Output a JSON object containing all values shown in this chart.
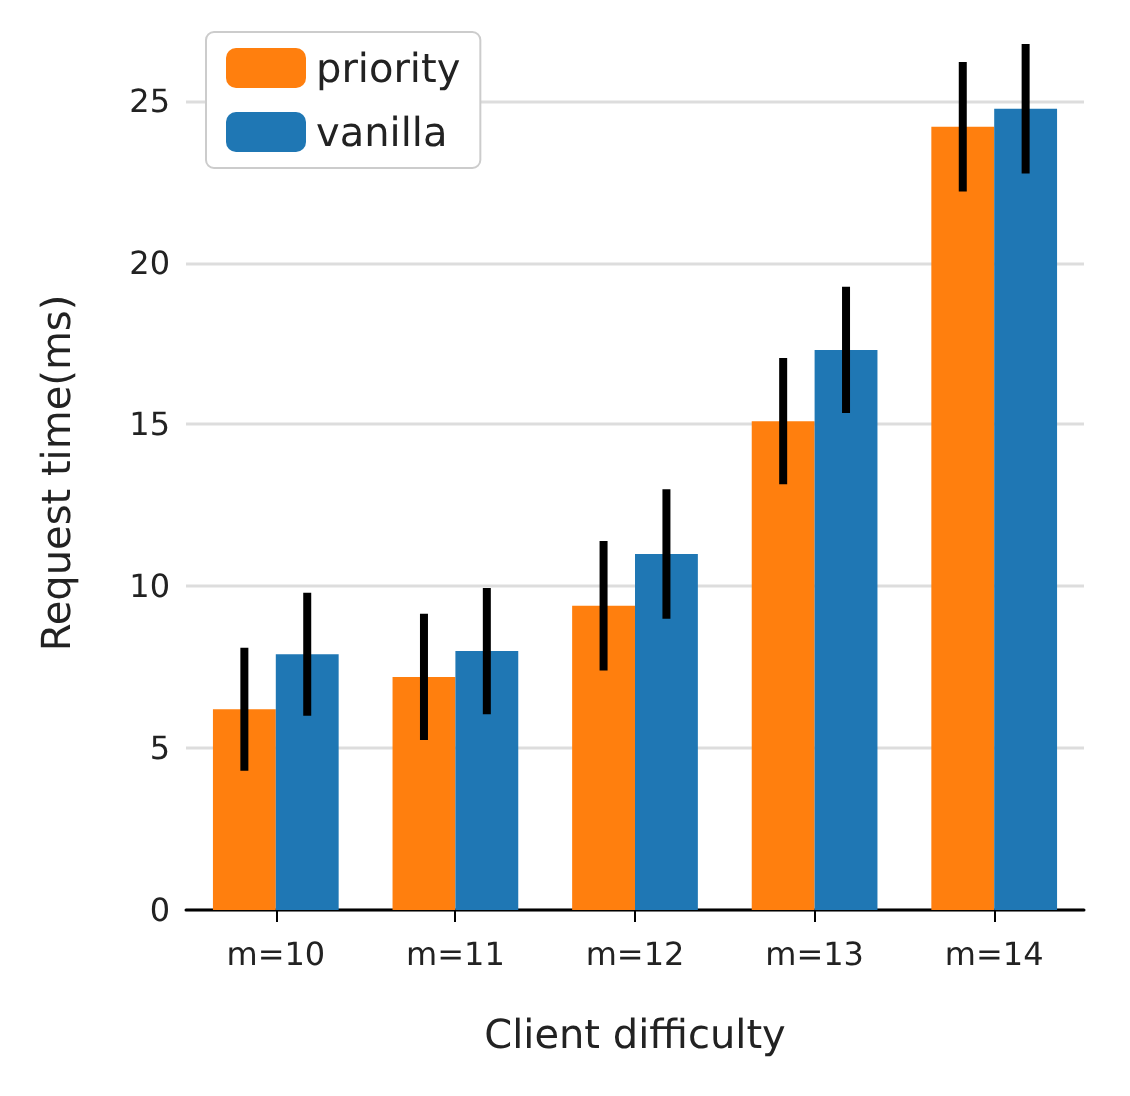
{
  "chart_data": {
    "type": "bar",
    "xlabel": "Client difficulty",
    "ylabel": "Request time(ms)",
    "categories": [
      "m=10",
      "m=11",
      "m=12",
      "m=13",
      "m=14"
    ],
    "series": [
      {
        "name": "priority",
        "color": "#ff7f0e",
        "values": [
          6.2,
          7.2,
          9.4,
          15.1,
          24.2
        ],
        "errors": [
          1.9,
          1.95,
          2.0,
          1.95,
          2.0
        ]
      },
      {
        "name": "vanilla",
        "color": "#1f77b4",
        "values": [
          7.9,
          8.0,
          11.0,
          17.3,
          24.75
        ],
        "errors": [
          1.9,
          1.95,
          2.0,
          1.95,
          2.0
        ]
      }
    ],
    "ylim": [
      0,
      27
    ],
    "yticks": [
      0,
      5,
      10,
      15,
      20,
      25
    ],
    "grid": "y",
    "legend": "top left"
  }
}
